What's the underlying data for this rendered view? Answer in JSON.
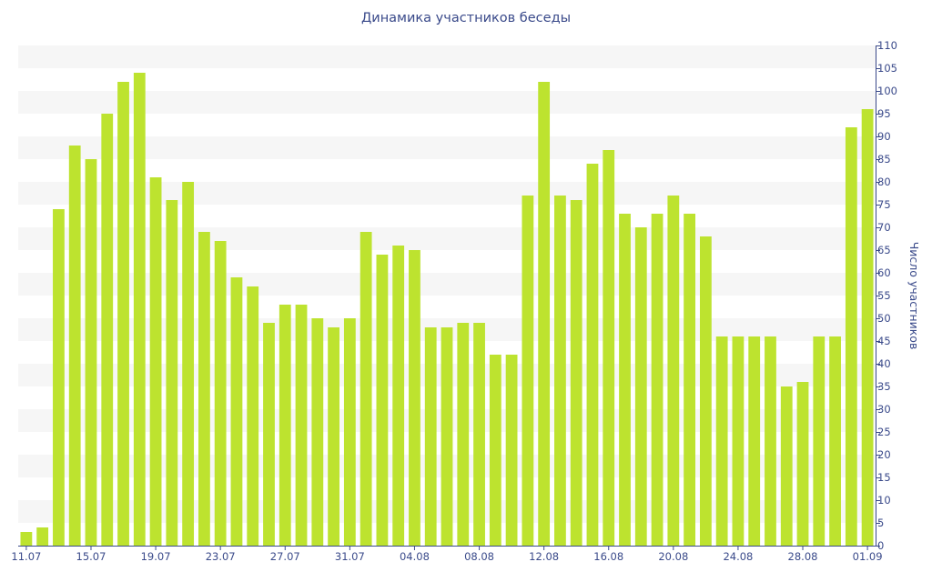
{
  "chart_data": {
    "type": "bar",
    "title": "Динамика участников беседы",
    "xlabel": "",
    "ylabel": "Число участников",
    "ylim": [
      0,
      110
    ],
    "y_ticks": [
      0,
      5,
      10,
      15,
      20,
      25,
      30,
      35,
      40,
      45,
      50,
      55,
      60,
      65,
      70,
      75,
      80,
      85,
      90,
      95,
      100,
      105,
      110
    ],
    "y_axis_side": "right",
    "grid": "alternating horizontal bands",
    "bar_color": "#bde32f",
    "band_color": "#f6f6f6",
    "axis_color": "#3a4a8a",
    "categories": [
      "11.07",
      "12.07",
      "13.07",
      "14.07",
      "15.07",
      "16.07",
      "17.07",
      "18.07",
      "19.07",
      "20.07",
      "21.07",
      "22.07",
      "23.07",
      "24.07",
      "25.07",
      "26.07",
      "27.07",
      "28.07",
      "29.07",
      "30.07",
      "31.07",
      "01.08",
      "02.08",
      "03.08",
      "04.08",
      "05.08",
      "06.08",
      "07.08",
      "08.08",
      "09.08",
      "10.08",
      "11.08",
      "12.08",
      "13.08",
      "14.08",
      "15.08",
      "16.08",
      "17.08",
      "18.08",
      "19.08",
      "20.08",
      "21.08",
      "22.08",
      "23.08",
      "24.08",
      "25.08",
      "26.08",
      "27.08",
      "28.08",
      "29.08",
      "30.08",
      "31.08",
      "01.09"
    ],
    "x_tick_labels": [
      "11.07",
      "15.07",
      "19.07",
      "23.07",
      "27.07",
      "31.07",
      "04.08",
      "08.08",
      "12.08",
      "16.08",
      "20.08",
      "24.08",
      "28.08",
      "01.09"
    ],
    "values": [
      3,
      4,
      74,
      88,
      85,
      95,
      102,
      104,
      81,
      76,
      80,
      69,
      67,
      59,
      57,
      49,
      53,
      53,
      50,
      48,
      50,
      69,
      64,
      66,
      65,
      48,
      48,
      49,
      49,
      42,
      42,
      77,
      102,
      77,
      76,
      84,
      87,
      73,
      70,
      73,
      77,
      73,
      68,
      46,
      46,
      46,
      46,
      35,
      36,
      46,
      46,
      92,
      96
    ]
  }
}
